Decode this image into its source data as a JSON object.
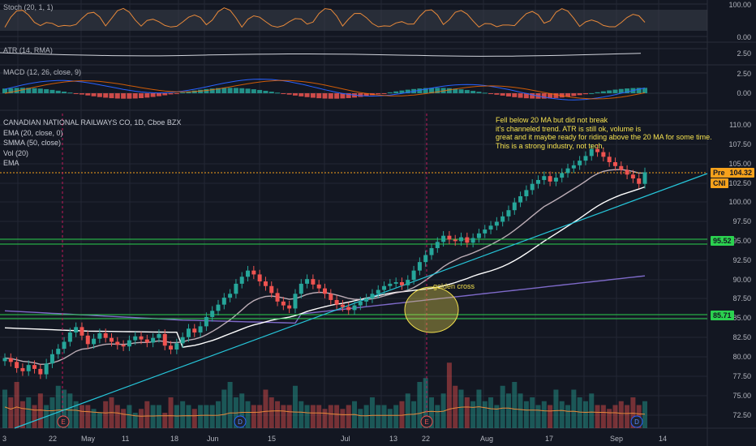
{
  "panes": {
    "stoch_label": "Stoch (20, 1, 1)",
    "atr_label": "ATR (14, RMA)",
    "macd_label": "MACD (12, 26, close, 9)"
  },
  "main_legend": {
    "symbol": "CANADIAN NATIONAL RAILWAYS CO, 1D, Cboe BZX",
    "items": [
      "EMA (20, close, 0)",
      "SMMA (50, close)",
      "Vol (20)",
      "EMA"
    ]
  },
  "annotations": {
    "note": "Fell below 20 MA but did not break\nit's channeled trend. ATR is still ok, volume is\ngreat and it maybe ready for riding above the 20 MA for some time.\nThis is a strong industry, not tech.",
    "golden_cross": "golden cross"
  },
  "price_tags": {
    "pre_label": "Pre",
    "pre_value": "104.32",
    "symbol": "CNI",
    "level_upper": "95.52",
    "level_lower": "85.71"
  },
  "axes": {
    "stoch_ticks": [
      "100.00",
      "0.00"
    ],
    "atr_ticks": [
      "2.50"
    ],
    "macd_ticks": [
      "2.50",
      "0.00"
    ],
    "price_ticks": [
      "110.00",
      "107.50",
      "105.00",
      "102.50",
      "100.00",
      "97.50",
      "95.00",
      "92.50",
      "90.00",
      "87.50",
      "85.00",
      "82.50",
      "80.00",
      "77.50",
      "75.00",
      "72.50"
    ],
    "time_labels": [
      "3",
      "22",
      "May",
      "11",
      "18",
      "Jun",
      "15",
      "Jul",
      "13",
      "22",
      "Aug",
      "17",
      "Sep",
      "14"
    ]
  },
  "event_markers": [
    "E",
    "D",
    "E",
    "D"
  ],
  "colors": {
    "background": "#131722",
    "up": "#26a69a",
    "down": "#ef5350",
    "ema20": "#e0d6dc",
    "smma50": "#ffffff",
    "ema_purple": "#7e6ac9",
    "trendline": "#26c6da",
    "level": "#2bd14f",
    "annotation": "#f5e24f",
    "pre_tag": "#f7a21b"
  }
}
